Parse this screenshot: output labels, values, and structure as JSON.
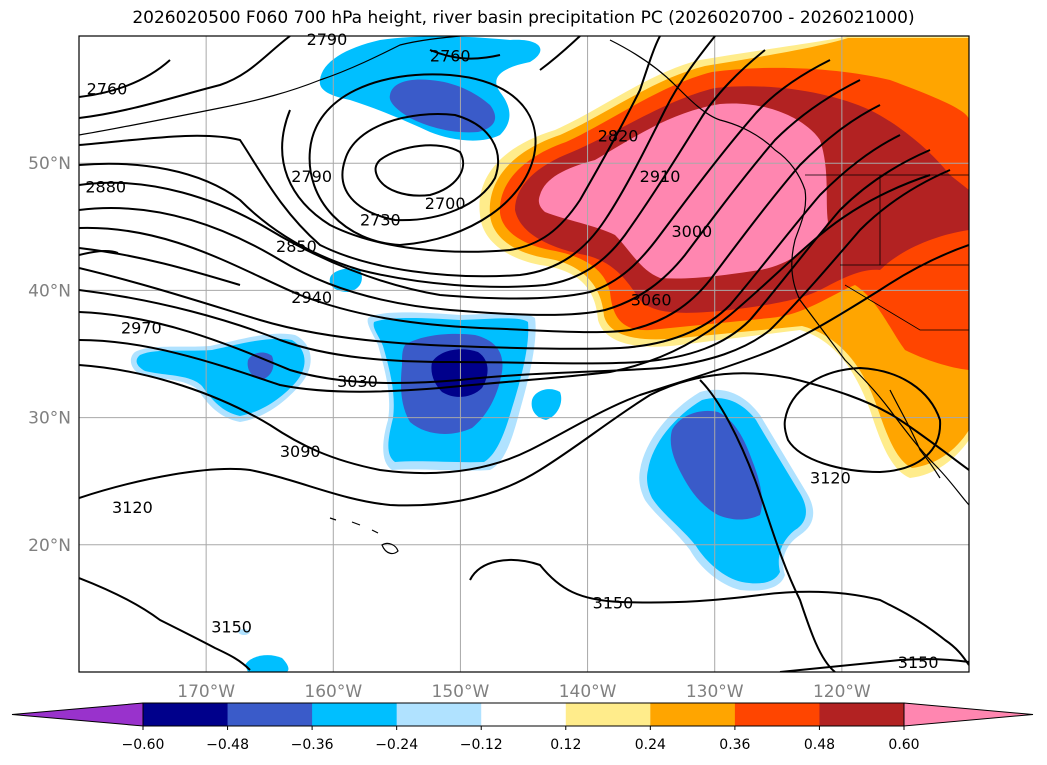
{
  "title": "2026020500 F060 700 hPa height, river basin precipitation PC (2026020700 - 2026021000)",
  "chart_data": {
    "type": "contour-map",
    "title": "2026020500 F060 700 hPa height, river basin precipitation PC (2026020700 - 2026021000)",
    "lon_range": [
      -180,
      -110
    ],
    "lat_range": [
      10,
      60
    ],
    "lon_ticks": [
      -170,
      -160,
      -150,
      -140,
      -130,
      -120
    ],
    "lon_tick_labels": [
      "170°W",
      "160°W",
      "150°W",
      "140°W",
      "130°W",
      "120°W"
    ],
    "lat_ticks": [
      20,
      30,
      40,
      50
    ],
    "lat_tick_labels": [
      "20°N",
      "30°N",
      "40°N",
      "50°N"
    ],
    "grid": true,
    "contour_labels": [
      "2700",
      "2730",
      "2760",
      "2790",
      "2820",
      "2850",
      "2880",
      "2910",
      "2940",
      "2970",
      "3000",
      "3030",
      "3060",
      "3090",
      "3120",
      "3150"
    ],
    "contour_label_items": [
      {
        "text": "2790",
        "lon": -160.5,
        "lat": 59.7
      },
      {
        "text": "2760",
        "lon": -177.8,
        "lat": 55.8
      },
      {
        "text": "2760",
        "lon": -150.8,
        "lat": 58.4
      },
      {
        "text": "2790",
        "lon": -161.7,
        "lat": 48.9
      },
      {
        "text": "2880",
        "lon": -177.9,
        "lat": 48.1
      },
      {
        "text": "2730",
        "lon": -156.3,
        "lat": 45.5
      },
      {
        "text": "2700",
        "lon": -151.2,
        "lat": 46.8
      },
      {
        "text": "2850",
        "lon": -162.9,
        "lat": 43.4
      },
      {
        "text": "2820",
        "lon": -137.6,
        "lat": 52.1
      },
      {
        "text": "2910",
        "lon": -134.3,
        "lat": 48.9
      },
      {
        "text": "3000",
        "lon": -131.8,
        "lat": 44.6
      },
      {
        "text": "3060",
        "lon": -135.0,
        "lat": 39.2
      },
      {
        "text": "2940",
        "lon": -161.7,
        "lat": 39.4
      },
      {
        "text": "2970",
        "lon": -175.1,
        "lat": 37.0
      },
      {
        "text": "3030",
        "lon": -158.1,
        "lat": 32.8
      },
      {
        "text": "3090",
        "lon": -162.6,
        "lat": 27.3
      },
      {
        "text": "3120",
        "lon": -175.8,
        "lat": 22.9
      },
      {
        "text": "3120",
        "lon": -120.9,
        "lat": 25.2
      },
      {
        "text": "3150",
        "lon": -138.0,
        "lat": 15.4
      },
      {
        "text": "3150",
        "lon": -168.0,
        "lat": 13.5
      },
      {
        "text": "3150",
        "lon": -114.0,
        "lat": 10.7
      }
    ],
    "fill_levels": [
      -0.6,
      -0.48,
      -0.36,
      -0.24,
      -0.12,
      0.12,
      0.24,
      0.36,
      0.48,
      0.6
    ],
    "colorbar": {
      "tick_labels": [
        "−0.60",
        "−0.48",
        "−0.36",
        "−0.24",
        "−0.12",
        "0.12",
        "0.24",
        "0.36",
        "0.48",
        "0.60"
      ],
      "colors": [
        "#9932cc",
        "#00008b",
        "#3a5bc9",
        "#00bfff",
        "#b0e2ff",
        "#ffffff",
        "#ffec8b",
        "#ffa500",
        "#ff4500",
        "#b22222",
        "#ff86b0"
      ],
      "extend": "both"
    }
  }
}
